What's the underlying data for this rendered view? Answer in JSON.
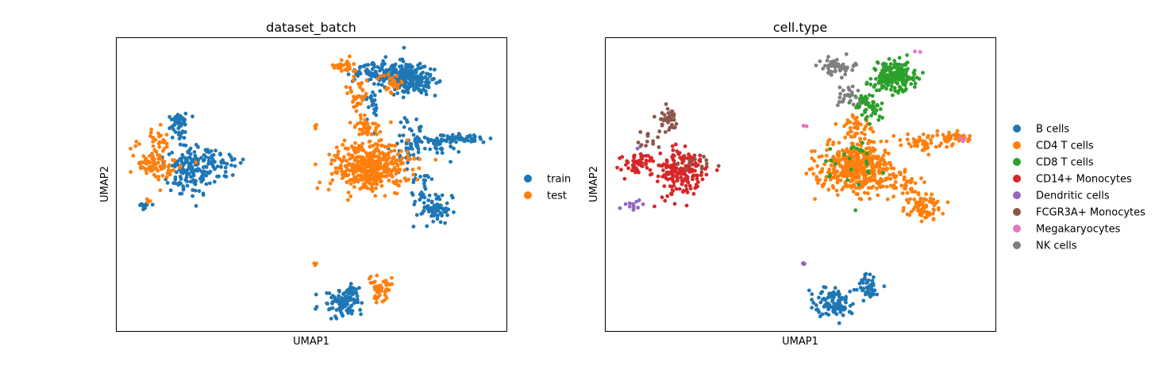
{
  "chart_data": [
    {
      "type": "scatter",
      "title": "dataset_batch",
      "xlabel": "UMAP1",
      "ylabel": "UMAP2",
      "xlim": [
        0,
        100
      ],
      "ylim": [
        0,
        100
      ],
      "ticks": false,
      "grid": false,
      "legend_position": "right",
      "series": [
        {
          "name": "train",
          "color": "#1f77b4",
          "clusters": [
            {
              "cx": 16,
              "cy": 71,
              "sx": 0.9,
              "sy": 1.3,
              "n": 6,
              "seed": 101
            },
            {
              "cx": 16,
              "cy": 70.5,
              "sx": 1.3,
              "sy": 2.2,
              "n": 45,
              "seed": 102
            },
            {
              "cx": 19,
              "cy": 55,
              "sx": 3.2,
              "sy": 4.0,
              "n": 150,
              "seed": 103
            },
            {
              "cx": 24,
              "cy": 57,
              "sx": 3.2,
              "sy": 2.2,
              "n": 45,
              "seed": 104
            },
            {
              "cx": 7,
              "cy": 43,
              "sx": 1.2,
              "sy": 0.7,
              "n": 10,
              "seed": 105
            },
            {
              "cx": 68,
              "cy": 88,
              "sx": 3.8,
              "sy": 2.0,
              "n": 110,
              "seed": 106
            },
            {
              "cx": 74.5,
              "cy": 87,
              "sx": 2.5,
              "sy": 2.6,
              "n": 160,
              "seed": 107
            },
            {
              "cx": 79,
              "cy": 85,
              "sx": 1.6,
              "sy": 2.2,
              "n": 40,
              "seed": 108
            },
            {
              "cx": 66,
              "cy": 77,
              "sx": 1.2,
              "sy": 3.0,
              "n": 22,
              "seed": 109
            },
            {
              "cx": 75,
              "cy": 63,
              "sx": 2.0,
              "sy": 5.0,
              "n": 45,
              "seed": 110
            },
            {
              "cx": 82,
              "cy": 64,
              "sx": 3.5,
              "sy": 1.5,
              "n": 55,
              "seed": 111
            },
            {
              "cx": 89,
              "cy": 66,
              "sx": 2.8,
              "sy": 1.0,
              "n": 45,
              "seed": 112
            },
            {
              "cx": 81.5,
              "cy": 42,
              "sx": 2.4,
              "sy": 2.4,
              "n": 70,
              "seed": 113
            },
            {
              "cx": 78,
              "cy": 50,
              "sx": 1.5,
              "sy": 2.5,
              "n": 20,
              "seed": 114
            },
            {
              "cx": 57.5,
              "cy": 10,
              "sx": 2.7,
              "sy": 2.3,
              "n": 95,
              "seed": 115
            },
            {
              "cx": 60,
              "cy": 14,
              "sx": 1.2,
              "sy": 1.2,
              "n": 15,
              "seed": 116
            }
          ]
        },
        {
          "name": "test",
          "color": "#ff7f0e",
          "clusters": [
            {
              "cx": 10,
              "cy": 57,
              "sx": 2.6,
              "sy": 3.5,
              "n": 90,
              "seed": 201
            },
            {
              "cx": 10,
              "cy": 66,
              "sx": 1.5,
              "sy": 1.8,
              "n": 20,
              "seed": 202
            },
            {
              "cx": 8,
              "cy": 44,
              "sx": 0.8,
              "sy": 0.6,
              "n": 5,
              "seed": 203
            },
            {
              "cx": 65,
              "cy": 56,
              "sx": 4.8,
              "sy": 4.5,
              "n": 420,
              "seed": 204
            },
            {
              "cx": 58.5,
              "cy": 90,
              "sx": 1.6,
              "sy": 1.2,
              "n": 25,
              "seed": 205
            },
            {
              "cx": 61.5,
              "cy": 80,
              "sx": 1.4,
              "sy": 3.5,
              "n": 40,
              "seed": 206
            },
            {
              "cx": 70.5,
              "cy": 85,
              "sx": 1.5,
              "sy": 2.0,
              "n": 25,
              "seed": 207
            },
            {
              "cx": 64.5,
              "cy": 70,
              "sx": 2.0,
              "sy": 2.0,
              "n": 35,
              "seed": 208
            },
            {
              "cx": 67.5,
              "cy": 15,
              "sx": 1.5,
              "sy": 2.2,
              "n": 50,
              "seed": 209
            },
            {
              "cx": 51,
              "cy": 70,
              "sx": 0.3,
              "sy": 0.3,
              "n": 4,
              "seed": 210
            },
            {
              "cx": 51,
              "cy": 23,
              "sx": 0.3,
              "sy": 0.3,
              "n": 4,
              "seed": 211
            }
          ]
        }
      ]
    },
    {
      "type": "scatter",
      "title": "cell.type",
      "xlabel": "UMAP1",
      "ylabel": "UMAP2",
      "xlim": [
        0,
        100
      ],
      "ylim": [
        0,
        100
      ],
      "ticks": false,
      "grid": false,
      "legend_position": "right",
      "series": [
        {
          "name": "B cells",
          "color": "#1f77b4",
          "clusters": [
            {
              "cx": 57.5,
              "cy": 10,
              "sx": 2.7,
              "sy": 2.3,
              "n": 95,
              "seed": 301
            },
            {
              "cx": 67.5,
              "cy": 15,
              "sx": 1.5,
              "sy": 2.2,
              "n": 50,
              "seed": 302
            }
          ]
        },
        {
          "name": "CD4 T cells",
          "color": "#ff7f0e",
          "clusters": [
            {
              "cx": 65,
              "cy": 56,
              "sx": 4.8,
              "sy": 4.5,
              "n": 460,
              "seed": 311
            },
            {
              "cx": 64.5,
              "cy": 70,
              "sx": 2.0,
              "sy": 2.0,
              "n": 40,
              "seed": 312
            },
            {
              "cx": 82,
              "cy": 64,
              "sx": 3.5,
              "sy": 1.5,
              "n": 45,
              "seed": 313
            },
            {
              "cx": 89,
              "cy": 66,
              "sx": 2.8,
              "sy": 1.0,
              "n": 40,
              "seed": 314
            },
            {
              "cx": 81.5,
              "cy": 42,
              "sx": 2.4,
              "sy": 2.4,
              "n": 70,
              "seed": 315
            },
            {
              "cx": 78,
              "cy": 50,
              "sx": 1.5,
              "sy": 2.5,
              "n": 25,
              "seed": 316
            }
          ]
        },
        {
          "name": "CD8 T cells",
          "color": "#2ca02c",
          "clusters": [
            {
              "cx": 74,
              "cy": 87,
              "sx": 2.7,
              "sy": 2.6,
              "n": 200,
              "seed": 321
            },
            {
              "cx": 67,
              "cy": 77,
              "sx": 2.0,
              "sy": 3.0,
              "n": 55,
              "seed": 322
            },
            {
              "cx": 63,
              "cy": 59,
              "sx": 4.0,
              "sy": 5.0,
              "n": 25,
              "seed": 323
            }
          ]
        },
        {
          "name": "CD14+ Monocytes",
          "color": "#d62728",
          "clusters": [
            {
              "cx": 19,
              "cy": 54,
              "sx": 3.0,
              "sy": 4.0,
              "n": 150,
              "seed": 331
            },
            {
              "cx": 8.5,
              "cy": 57,
              "sx": 2.3,
              "sy": 2.2,
              "n": 50,
              "seed": 332
            },
            {
              "cx": 22,
              "cy": 57,
              "sx": 3.0,
              "sy": 2.0,
              "n": 30,
              "seed": 333
            }
          ]
        },
        {
          "name": "Dendritic cells",
          "color": "#9467bd",
          "clusters": [
            {
              "cx": 7.5,
              "cy": 43,
              "sx": 1.3,
              "sy": 0.9,
              "n": 12,
              "seed": 341
            },
            {
              "cx": 51,
              "cy": 23,
              "sx": 0.3,
              "sy": 0.3,
              "n": 4,
              "seed": 342
            },
            {
              "cx": 8,
              "cy": 62,
              "sx": 0.6,
              "sy": 0.6,
              "n": 2,
              "seed": 343
            }
          ]
        },
        {
          "name": "FCGR3A+ Monocytes",
          "color": "#8c564b",
          "clusters": [
            {
              "cx": 16,
              "cy": 72,
              "sx": 1.3,
              "sy": 2.0,
              "n": 40,
              "seed": 351
            },
            {
              "cx": 11,
              "cy": 65,
              "sx": 1.5,
              "sy": 1.5,
              "n": 12,
              "seed": 352
            },
            {
              "cx": 24,
              "cy": 57,
              "sx": 2.0,
              "sy": 1.5,
              "n": 12,
              "seed": 353
            }
          ]
        },
        {
          "name": "Megakaryocytes",
          "color": "#e377c2",
          "clusters": [
            {
              "cx": 51,
              "cy": 70,
              "sx": 0.3,
              "sy": 0.3,
              "n": 3,
              "seed": 361
            },
            {
              "cx": 92,
              "cy": 66,
              "sx": 1.0,
              "sy": 0.6,
              "n": 3,
              "seed": 362
            },
            {
              "cx": 79,
              "cy": 95,
              "sx": 1.2,
              "sy": 0.8,
              "n": 2,
              "seed": 363
            }
          ]
        },
        {
          "name": "NK cells",
          "color": "#7f7f7f",
          "clusters": [
            {
              "cx": 59.5,
              "cy": 90,
              "sx": 2.2,
              "sy": 1.5,
              "n": 55,
              "seed": 371
            },
            {
              "cx": 62,
              "cy": 81,
              "sx": 1.4,
              "sy": 2.5,
              "n": 25,
              "seed": 372
            }
          ]
        }
      ]
    }
  ]
}
